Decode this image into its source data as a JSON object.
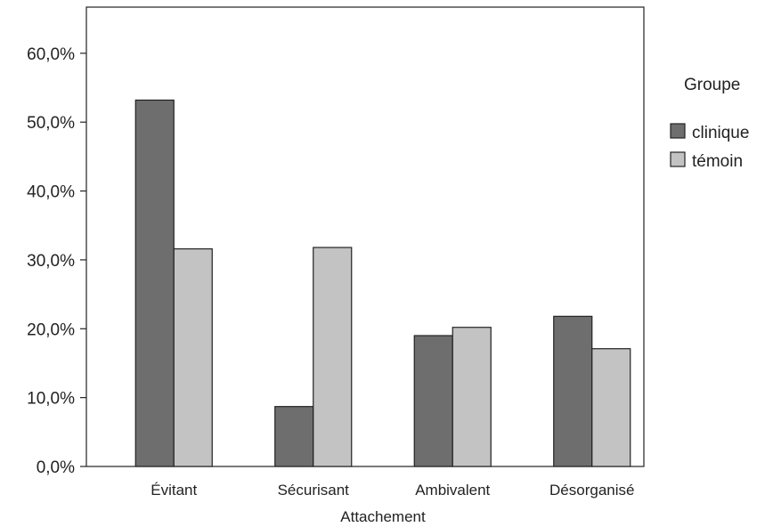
{
  "chart_data": {
    "type": "bar",
    "categories": [
      "Évitant",
      "Sécurisant",
      "Ambivalent",
      "Désorganisé"
    ],
    "series": [
      {
        "name": "clinique",
        "values": [
          53.2,
          8.7,
          19.0,
          21.8
        ],
        "color": "#6e6e6e"
      },
      {
        "name": "témoin",
        "values": [
          31.6,
          31.8,
          20.2,
          17.1
        ],
        "color": "#c3c3c3"
      }
    ],
    "title": "",
    "xlabel": "Attachement",
    "ylabel": "",
    "ylim": [
      0,
      66.7
    ],
    "yticks": [
      0,
      10,
      20,
      30,
      40,
      50,
      60
    ],
    "ytick_labels": [
      "0,0%",
      "10,0%",
      "20,0%",
      "30,0%",
      "40,0%",
      "50,0%",
      "60,0%"
    ],
    "legend": {
      "title": "Groupe",
      "position": "right"
    },
    "grid": false
  }
}
